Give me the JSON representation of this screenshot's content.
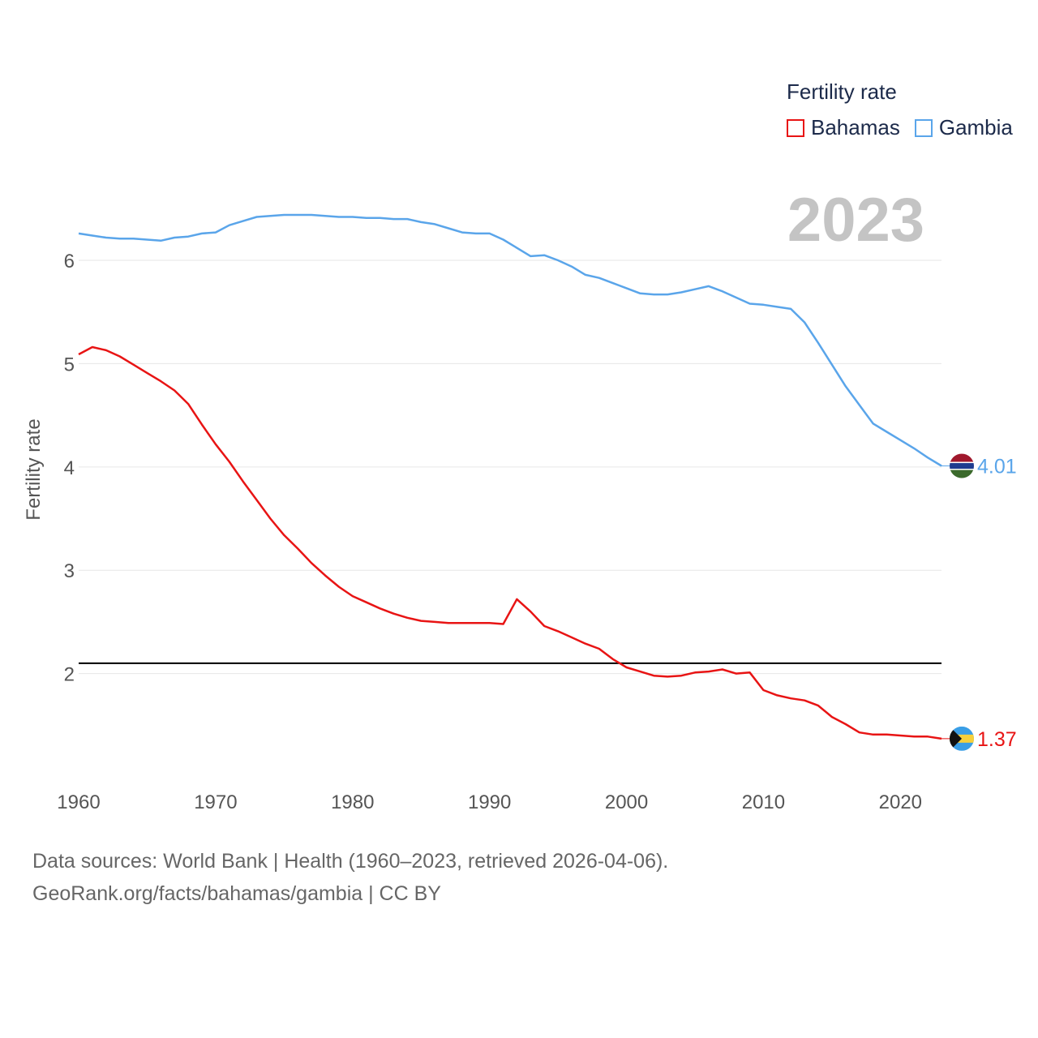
{
  "legend": {
    "title": "Fertility rate",
    "items": [
      {
        "label": "Bahamas",
        "color": "#e81414"
      },
      {
        "label": "Gambia",
        "color": "#5aa5ea"
      }
    ]
  },
  "current_year": "2023",
  "footer": {
    "line1": "Data sources: World Bank | Health (1960–2023, retrieved 2026-04-06).",
    "line2": "GeoRank.org/facts/bahamas/gambia | CC BY"
  },
  "chart_data": {
    "type": "line",
    "title": "",
    "ylabel": "Fertility rate",
    "xlabel": "",
    "xlim": [
      1960,
      2023
    ],
    "ylim": [
      1.0,
      6.95
    ],
    "xticks": [
      1960,
      1970,
      1980,
      1990,
      2000,
      2010,
      2020
    ],
    "yticks": [
      2,
      3,
      4,
      5,
      6
    ],
    "reference_line": {
      "y": 2.1,
      "color": "#000000"
    },
    "x": [
      1960,
      1961,
      1962,
      1963,
      1964,
      1965,
      1966,
      1967,
      1968,
      1969,
      1970,
      1971,
      1972,
      1973,
      1974,
      1975,
      1976,
      1977,
      1978,
      1979,
      1980,
      1981,
      1982,
      1983,
      1984,
      1985,
      1986,
      1987,
      1988,
      1989,
      1990,
      1991,
      1992,
      1993,
      1994,
      1995,
      1996,
      1997,
      1998,
      1999,
      2000,
      2001,
      2002,
      2003,
      2004,
      2005,
      2006,
      2007,
      2008,
      2009,
      2010,
      2011,
      2012,
      2013,
      2014,
      2015,
      2016,
      2017,
      2018,
      2019,
      2020,
      2021,
      2022,
      2023
    ],
    "series": [
      {
        "name": "Bahamas",
        "color": "#e81414",
        "end_label": "1.37",
        "values": [
          5.09,
          5.16,
          5.13,
          5.07,
          4.99,
          4.91,
          4.83,
          4.74,
          4.61,
          4.41,
          4.22,
          4.05,
          3.86,
          3.68,
          3.5,
          3.34,
          3.21,
          3.07,
          2.95,
          2.84,
          2.75,
          2.69,
          2.63,
          2.58,
          2.54,
          2.51,
          2.5,
          2.49,
          2.49,
          2.49,
          2.49,
          2.48,
          2.72,
          2.6,
          2.46,
          2.41,
          2.35,
          2.29,
          2.24,
          2.14,
          2.06,
          2.02,
          1.98,
          1.97,
          1.98,
          2.01,
          2.02,
          2.04,
          2.0,
          2.01,
          1.84,
          1.79,
          1.76,
          1.74,
          1.69,
          1.58,
          1.51,
          1.43,
          1.41,
          1.41,
          1.4,
          1.39,
          1.39,
          1.37
        ]
      },
      {
        "name": "Gambia",
        "color": "#5aa5ea",
        "end_label": "4.01",
        "values": [
          6.26,
          6.24,
          6.22,
          6.21,
          6.21,
          6.2,
          6.19,
          6.22,
          6.23,
          6.26,
          6.27,
          6.34,
          6.38,
          6.42,
          6.43,
          6.44,
          6.44,
          6.44,
          6.43,
          6.42,
          6.42,
          6.41,
          6.41,
          6.4,
          6.4,
          6.37,
          6.35,
          6.31,
          6.27,
          6.26,
          6.26,
          6.2,
          6.12,
          6.04,
          6.05,
          6.0,
          5.94,
          5.86,
          5.83,
          5.78,
          5.73,
          5.68,
          5.67,
          5.67,
          5.69,
          5.72,
          5.75,
          5.7,
          5.64,
          5.58,
          5.57,
          5.55,
          5.53,
          5.4,
          5.2,
          4.99,
          4.78,
          4.6,
          4.42,
          4.34,
          4.26,
          4.18,
          4.09,
          4.01
        ]
      }
    ]
  }
}
